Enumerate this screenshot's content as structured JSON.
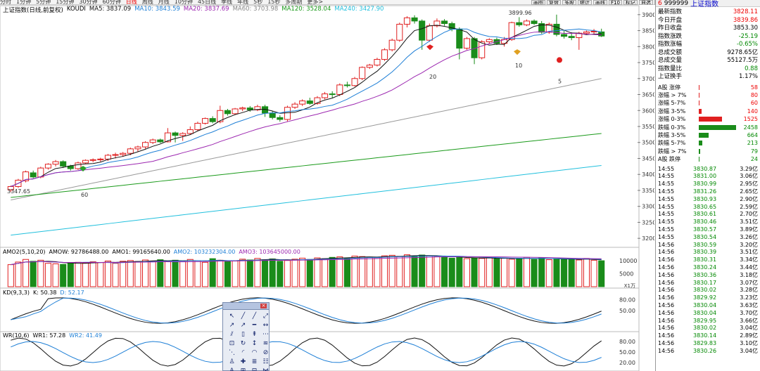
{
  "top_periods": [
    "分时",
    "1分钟",
    "5分钟",
    "15分钟",
    "30分钟",
    "60分钟",
    "日线",
    "周线",
    "月线",
    "10分钟",
    "45日线",
    "季线",
    "年线",
    "5秒",
    "15秒",
    "多周期",
    "更多>"
  ],
  "active_period": "日线",
  "top_buttons": [
    "画图",
    "复盘",
    "多股",
    "统计",
    "画线",
    "F10",
    "标记",
    "自选",
    "返回"
  ],
  "title": {
    "name": "上证指数(日线,前复权)",
    "indicator": "KOUDI",
    "ma5": "MA5: 3837.09",
    "ma10": "MA10: 3843.59",
    "ma20": "MA20: 3837.69",
    "ma60": "MA60: 3703.98",
    "ma120": "MA120: 3528.04",
    "ma240": "MA240: 3427.90"
  },
  "colors": {
    "ma5": "#111111",
    "ma10": "#1e7fd6",
    "ma20": "#9c27b0",
    "ma60": "#9a9a9a",
    "ma120": "#1a9a1a",
    "ma240": "#22c0dd",
    "up": "#e02020",
    "down": "#1a8c1a"
  },
  "price_axis": [
    "3900",
    "3850",
    "3800",
    "3750",
    "3700",
    "3650",
    "3600",
    "3550",
    "3500",
    "3450",
    "3400",
    "3350",
    "3300",
    "3250",
    "3200"
  ],
  "annotations": {
    "high": "3899.96",
    "low": "3347.65",
    "lbl60": "60",
    "lbl20": "20",
    "lbl10": "10",
    "lbl5": "5"
  },
  "candles": [
    [
      3352,
      3362,
      3345,
      3365
    ],
    [
      3362,
      3382,
      3358,
      3386
    ],
    [
      3380,
      3408,
      3375,
      3412
    ],
    [
      3405,
      3392,
      3388,
      3412
    ],
    [
      3392,
      3420,
      3388,
      3424
    ],
    [
      3420,
      3432,
      3415,
      3435
    ],
    [
      3432,
      3440,
      3425,
      3445
    ],
    [
      3440,
      3426,
      3420,
      3444
    ],
    [
      3426,
      3418,
      3412,
      3430
    ],
    [
      3418,
      3436,
      3414,
      3440
    ],
    [
      3436,
      3444,
      3432,
      3447
    ],
    [
      3444,
      3446,
      3438,
      3450
    ],
    [
      3446,
      3448,
      3440,
      3452
    ],
    [
      3448,
      3460,
      3442,
      3464
    ],
    [
      3460,
      3462,
      3450,
      3468
    ],
    [
      3462,
      3466,
      3455,
      3470
    ],
    [
      3466,
      3480,
      3460,
      3484
    ],
    [
      3480,
      3486,
      3472,
      3490
    ],
    [
      3486,
      3500,
      3480,
      3504
    ],
    [
      3500,
      3508,
      3495,
      3512
    ],
    [
      3508,
      3502,
      3498,
      3512
    ],
    [
      3502,
      3530,
      3500,
      3545
    ],
    [
      3530,
      3522,
      3500,
      3534
    ],
    [
      3522,
      3528,
      3505,
      3532
    ],
    [
      3528,
      3540,
      3525,
      3550
    ],
    [
      3540,
      3560,
      3536,
      3565
    ],
    [
      3560,
      3575,
      3556,
      3578
    ],
    [
      3575,
      3565,
      3560,
      3582
    ],
    [
      3565,
      3600,
      3560,
      3615
    ],
    [
      3600,
      3590,
      3584,
      3605
    ],
    [
      3590,
      3605,
      3586,
      3608
    ],
    [
      3605,
      3608,
      3598,
      3612
    ],
    [
      3608,
      3602,
      3596,
      3614
    ],
    [
      3602,
      3612,
      3598,
      3618
    ],
    [
      3612,
      3592,
      3580,
      3618
    ],
    [
      3592,
      3578,
      3572,
      3598
    ],
    [
      3578,
      3572,
      3565,
      3585
    ],
    [
      3572,
      3610,
      3566,
      3615
    ],
    [
      3610,
      3620,
      3605,
      3626
    ],
    [
      3620,
      3630,
      3614,
      3635
    ],
    [
      3630,
      3622,
      3618,
      3640
    ],
    [
      3622,
      3640,
      3618,
      3645
    ],
    [
      3640,
      3652,
      3635,
      3658
    ],
    [
      3652,
      3650,
      3640,
      3660
    ],
    [
      3650,
      3680,
      3645,
      3685
    ],
    [
      3680,
      3678,
      3672,
      3690
    ],
    [
      3678,
      3700,
      3675,
      3705
    ],
    [
      3700,
      3735,
      3695,
      3738
    ],
    [
      3735,
      3742,
      3730,
      3746
    ],
    [
      3742,
      3760,
      3738,
      3765
    ],
    [
      3760,
      3790,
      3755,
      3795
    ],
    [
      3790,
      3820,
      3785,
      3825
    ],
    [
      3820,
      3870,
      3815,
      3875
    ],
    [
      3870,
      3890,
      3860,
      3895
    ],
    [
      3890,
      3880,
      3872,
      3898
    ],
    [
      3880,
      3820,
      3790,
      3885
    ],
    [
      3820,
      3865,
      3815,
      3872
    ],
    [
      3865,
      3880,
      3860,
      3888
    ],
    [
      3880,
      3872,
      3865,
      3886
    ],
    [
      3872,
      3855,
      3848,
      3878
    ],
    [
      3855,
      3795,
      3760,
      3860
    ],
    [
      3795,
      3825,
      3790,
      3830
    ],
    [
      3825,
      3765,
      3745,
      3830
    ],
    [
      3765,
      3815,
      3760,
      3820
    ],
    [
      3815,
      3822,
      3808,
      3826
    ],
    [
      3822,
      3810,
      3805,
      3828
    ],
    [
      3810,
      3822,
      3800,
      3830
    ],
    [
      3822,
      3875,
      3818,
      3878
    ],
    [
      3875,
      3868,
      3862,
      3892
    ],
    [
      3868,
      3880,
      3864,
      3885
    ],
    [
      3880,
      3872,
      3868,
      3885
    ],
    [
      3872,
      3845,
      3840,
      3880
    ],
    [
      3845,
      3870,
      3840,
      3875
    ],
    [
      3870,
      3838,
      3832,
      3900
    ],
    [
      3838,
      3832,
      3825,
      3850
    ],
    [
      3832,
      3828,
      3820,
      3845
    ],
    [
      3828,
      3842,
      3790,
      3846
    ],
    [
      3842,
      3846,
      3838,
      3850
    ],
    [
      3846,
      3848,
      3840,
      3855
    ],
    [
      3846,
      3833,
      3830,
      3856
    ]
  ],
  "right_panel": {
    "header": {
      "num": "6",
      "code": "999999",
      "name": "上证指数"
    },
    "quotes": [
      {
        "k": "最新指数",
        "v": "3828.11",
        "c": "red"
      },
      {
        "k": "今日开盘",
        "v": "3839.86",
        "c": "red"
      },
      {
        "k": "昨日收盘",
        "v": "3853.30",
        "c": ""
      },
      {
        "k": "指数涨跌",
        "v": "-25.19",
        "c": "green"
      },
      {
        "k": "指数涨幅",
        "v": "-0.65%",
        "c": "green"
      },
      {
        "k": "总成交额",
        "v": "9278.65亿",
        "c": ""
      },
      {
        "k": "总成交量",
        "v": "55127.5万",
        "c": ""
      },
      {
        "k": "指数量比",
        "v": "0.88",
        "c": "green"
      },
      {
        "k": "上证换手",
        "v": "1.17%",
        "c": ""
      }
    ],
    "breadth": [
      {
        "k": "A股 涨停",
        "v": "58",
        "c": "red",
        "w": 1
      },
      {
        "k": "涨幅 > 7%",
        "v": "80",
        "c": "red",
        "w": 1
      },
      {
        "k": "涨幅 5-7%",
        "v": "60",
        "c": "red",
        "w": 1
      },
      {
        "k": "涨幅 3-5%",
        "v": "140",
        "c": "red",
        "w": 4
      },
      {
        "k": "涨幅 0-3%",
        "v": "1525",
        "c": "red",
        "w": 33
      },
      {
        "k": "跌幅 0-3%",
        "v": "2458",
        "c": "green",
        "w": 53
      },
      {
        "k": "跌幅 3-5%",
        "v": "664",
        "c": "green",
        "w": 14
      },
      {
        "k": "跌幅 5-7%",
        "v": "213",
        "c": "green",
        "w": 5
      },
      {
        "k": "跌幅 > 7%",
        "v": "79",
        "c": "green",
        "w": 2
      },
      {
        "k": "A股 跌停",
        "v": "24",
        "c": "green",
        "w": 1
      }
    ],
    "ticks": [
      {
        "t": "14:55",
        "p": "3830.87",
        "a": "3.29亿"
      },
      {
        "t": "14:55",
        "p": "3831.00",
        "a": "3.06亿"
      },
      {
        "t": "14:55",
        "p": "3830.99",
        "a": "2.95亿"
      },
      {
        "t": "14:55",
        "p": "3831.26",
        "a": "2.65亿"
      },
      {
        "t": "14:55",
        "p": "3830.93",
        "a": "2.90亿"
      },
      {
        "t": "14:55",
        "p": "3830.65",
        "a": "2.59亿"
      },
      {
        "t": "14:55",
        "p": "3830.61",
        "a": "2.70亿"
      },
      {
        "t": "14:55",
        "p": "3830.46",
        "a": "3.51亿"
      },
      {
        "t": "14:55",
        "p": "3830.57",
        "a": "3.89亿"
      },
      {
        "t": "14:55",
        "p": "3830.54",
        "a": "3.26亿"
      },
      {
        "t": "14:56",
        "p": "3830.59",
        "a": "3.20亿"
      },
      {
        "t": "14:56",
        "p": "3830.39",
        "a": "3.51亿"
      },
      {
        "t": "14:56",
        "p": "3830.31",
        "a": "3.34亿"
      },
      {
        "t": "14:56",
        "p": "3830.24",
        "a": "3.44亿"
      },
      {
        "t": "14:56",
        "p": "3830.36",
        "a": "3.18亿"
      },
      {
        "t": "14:56",
        "p": "3830.17",
        "a": "3.07亿"
      },
      {
        "t": "14:56",
        "p": "3830.02",
        "a": "3.28亿"
      },
      {
        "t": "14:56",
        "p": "3829.92",
        "a": "3.23亿"
      },
      {
        "t": "14:56",
        "p": "3830.04",
        "a": "3.63亿"
      },
      {
        "t": "14:56",
        "p": "3830.04",
        "a": "3.70亿"
      },
      {
        "t": "14:56",
        "p": "3829.95",
        "a": "3.66亿"
      },
      {
        "t": "14:56",
        "p": "3830.02",
        "a": "3.04亿"
      },
      {
        "t": "14:56",
        "p": "3830.14",
        "a": "2.89亿"
      },
      {
        "t": "14:56",
        "p": "3829.83",
        "a": "3.10亿"
      },
      {
        "t": "14:56",
        "p": "3830.26",
        "a": "3.04亿"
      }
    ]
  },
  "amo": {
    "title": "AMO2(5,10,20)",
    "amow": "AMOW: 92786488.00",
    "amo1": "AMO1: 99165640.00",
    "amo2": "AMO2: 103232304.00",
    "amo3": "AMO3: 103645000.00",
    "axis": [
      "10000",
      "5000"
    ],
    "unit": "X1万",
    "values": [
      8500,
      9500,
      10500,
      9800,
      10200,
      9000,
      8800,
      8600,
      9200,
      9400,
      9100,
      9600,
      9300,
      9900,
      9000,
      9800,
      10100,
      9700,
      10300,
      9900,
      10400,
      9600,
      10200,
      9800,
      10500,
      10000,
      9400,
      10800,
      10200,
      9700,
      9900,
      10600,
      10300,
      10900,
      10400,
      10700,
      9800,
      10100,
      10600,
      11000,
      10500,
      11100,
      10800,
      11300,
      11500,
      11000,
      11800,
      11600,
      11400,
      11200,
      11900,
      12100,
      11700,
      12300,
      11800,
      12200,
      11900,
      11600,
      11300,
      11000,
      11500,
      10800,
      11100,
      10900,
      11200,
      10700,
      11000,
      10600,
      10900,
      11300,
      10500,
      11100,
      10400,
      10800,
      10600,
      10500,
      10300,
      10900,
      10200,
      10000
    ]
  },
  "kd": {
    "title": "KD(9,3,3)",
    "k": "K: 50.38",
    "d": "D: 52.17",
    "axis": [
      "80.00",
      "50.00"
    ]
  },
  "wr": {
    "title": "WR(10,6)",
    "wr1": "WR1: 57.28",
    "wr2": "WR2: 41.49",
    "axis": [
      "80.00",
      "50.00",
      "20.00"
    ]
  },
  "tool_icons": [
    "↖",
    "╱",
    "╱",
    "⤢",
    "↗",
    "↗",
    "━",
    "↔",
    "⫽",
    "▯",
    "⇞",
    "⋯",
    "⊡",
    "↻",
    "↕",
    "≋",
    "⋱",
    "◜",
    "◠",
    "⊘",
    "♙",
    "✚",
    "≣",
    "☷",
    "A",
    "⊞",
    "⊟",
    "⋈"
  ]
}
